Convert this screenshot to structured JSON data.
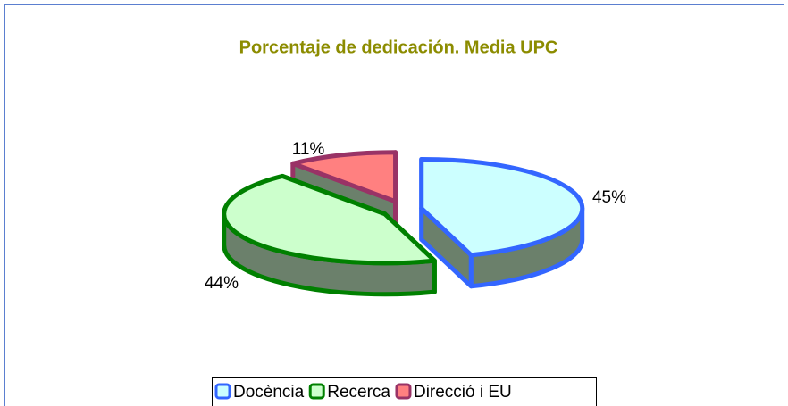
{
  "chart_data": {
    "type": "pie3d",
    "title": "Porcentaje de dedicación. Media UPC",
    "categories": [
      "Docència",
      "Recerca",
      "Direcció i EU"
    ],
    "values": [
      45,
      44,
      11
    ],
    "value_labels": [
      "45%",
      "44%",
      "11%"
    ],
    "colors": [
      "#ccffff",
      "#ccffcc",
      "#ff8080"
    ],
    "edge_colors": [
      "#3366ff",
      "#008000",
      "#993366"
    ],
    "side_color": "#6b806b",
    "legend": "bottom"
  }
}
